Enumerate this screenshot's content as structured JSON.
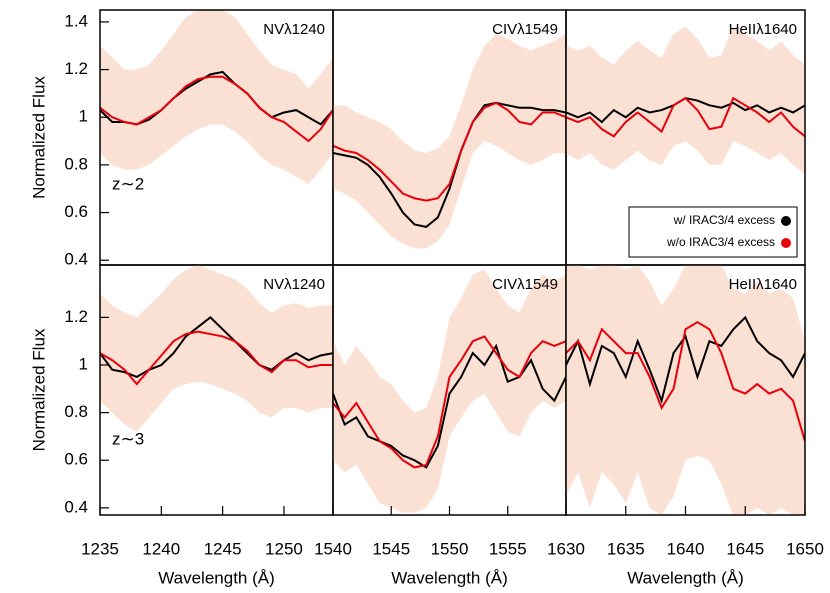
{
  "chart_data": [
    {
      "type": "line",
      "annotation": "NVλ1240",
      "redshift_label": "z∼2",
      "ylabel": "Normalized Flux",
      "x": [
        1235,
        1236,
        1237,
        1238,
        1239,
        1240,
        1241,
        1242,
        1243,
        1244,
        1245,
        1246,
        1247,
        1248,
        1249,
        1250,
        1251,
        1252,
        1253,
        1254
      ],
      "xlim": [
        1235,
        1254
      ],
      "ylim": [
        0.38,
        1.45
      ],
      "yticks": [
        0.4,
        0.6,
        0.8,
        1.0,
        1.2,
        1.4
      ],
      "series": [
        {
          "color": "#000000",
          "values": [
            1.03,
            0.98,
            0.98,
            0.97,
            0.99,
            1.03,
            1.08,
            1.12,
            1.15,
            1.18,
            1.19,
            1.14,
            1.1,
            1.04,
            1.0,
            1.02,
            1.03,
            1.0,
            0.97,
            1.03
          ]
        },
        {
          "color": "#e8000b",
          "values": [
            1.04,
            1.0,
            0.98,
            0.97,
            1.0,
            1.03,
            1.08,
            1.13,
            1.16,
            1.17,
            1.17,
            1.14,
            1.1,
            1.04,
            1.0,
            0.98,
            0.94,
            0.9,
            0.95,
            1.03
          ]
        }
      ],
      "band": {
        "color": "#fbe0d4",
        "lower": [
          0.85,
          0.8,
          0.78,
          0.78,
          0.8,
          0.84,
          0.88,
          0.92,
          0.95,
          0.97,
          0.97,
          0.94,
          0.9,
          0.84,
          0.8,
          0.78,
          0.75,
          0.72,
          0.78,
          0.85
        ],
        "upper": [
          1.3,
          1.25,
          1.2,
          1.2,
          1.22,
          1.28,
          1.35,
          1.42,
          1.45,
          1.45,
          1.45,
          1.42,
          1.35,
          1.28,
          1.22,
          1.2,
          1.18,
          1.12,
          1.18,
          1.25
        ]
      }
    },
    {
      "type": "line",
      "annotation": "CIVλ1549",
      "x": [
        1540,
        1541,
        1542,
        1543,
        1544,
        1545,
        1546,
        1547,
        1548,
        1549,
        1550,
        1551,
        1552,
        1553,
        1554,
        1555,
        1556,
        1557,
        1558,
        1559,
        1560
      ],
      "xlim": [
        1540,
        1560
      ],
      "ylim": [
        0.38,
        1.45
      ],
      "series": [
        {
          "color": "#000000",
          "values": [
            0.85,
            0.84,
            0.83,
            0.8,
            0.75,
            0.68,
            0.6,
            0.55,
            0.54,
            0.58,
            0.7,
            0.86,
            0.98,
            1.05,
            1.06,
            1.05,
            1.04,
            1.04,
            1.03,
            1.03,
            1.02
          ]
        },
        {
          "color": "#e8000b",
          "values": [
            0.88,
            0.86,
            0.85,
            0.82,
            0.78,
            0.73,
            0.68,
            0.66,
            0.65,
            0.66,
            0.72,
            0.86,
            0.98,
            1.04,
            1.06,
            1.03,
            0.98,
            0.97,
            1.02,
            1.02,
            1.0
          ]
        }
      ],
      "band": {
        "color": "#fbe0d4",
        "lower": [
          0.7,
          0.68,
          0.65,
          0.6,
          0.55,
          0.5,
          0.47,
          0.45,
          0.45,
          0.48,
          0.55,
          0.7,
          0.85,
          0.9,
          0.88,
          0.85,
          0.82,
          0.8,
          0.82,
          0.85,
          0.85
        ],
        "upper": [
          1.05,
          1.05,
          1.02,
          1.0,
          0.98,
          0.95,
          0.9,
          0.86,
          0.85,
          0.87,
          0.92,
          1.05,
          1.2,
          1.3,
          1.35,
          1.33,
          1.3,
          1.28,
          1.3,
          1.32,
          1.35
        ]
      }
    },
    {
      "type": "line",
      "annotation": "HeIIλ1640",
      "x": [
        1630,
        1631,
        1632,
        1633,
        1634,
        1635,
        1636,
        1637,
        1638,
        1639,
        1640,
        1641,
        1642,
        1643,
        1644,
        1645,
        1646,
        1647,
        1648,
        1649,
        1650
      ],
      "xlim": [
        1630,
        1650
      ],
      "ylim": [
        0.38,
        1.45
      ],
      "series": [
        {
          "name": "w/ IRAC3/4 excess",
          "color": "#000000",
          "values": [
            1.02,
            1.0,
            1.02,
            0.98,
            1.03,
            1.0,
            1.04,
            1.02,
            1.03,
            1.05,
            1.08,
            1.07,
            1.05,
            1.04,
            1.06,
            1.03,
            1.05,
            1.02,
            1.04,
            1.02,
            1.05
          ]
        },
        {
          "name": "w/o IRAC3/4 excess",
          "color": "#e8000b",
          "values": [
            1.0,
            0.98,
            1.0,
            0.95,
            0.92,
            0.98,
            1.02,
            0.98,
            0.94,
            1.05,
            1.08,
            1.03,
            0.95,
            0.96,
            1.08,
            1.05,
            1.02,
            0.98,
            1.02,
            0.96,
            0.92
          ]
        }
      ],
      "band": {
        "color": "#fbe0d4",
        "lower": [
          0.85,
          0.82,
          0.85,
          0.8,
          0.78,
          0.82,
          0.86,
          0.82,
          0.8,
          0.88,
          0.9,
          0.86,
          0.8,
          0.8,
          0.9,
          0.88,
          0.85,
          0.82,
          0.85,
          0.8,
          0.76
        ],
        "upper": [
          1.3,
          1.28,
          1.3,
          1.25,
          1.22,
          1.28,
          1.32,
          1.28,
          1.25,
          1.35,
          1.38,
          1.33,
          1.25,
          1.26,
          1.38,
          1.35,
          1.32,
          1.28,
          1.32,
          1.26,
          1.22
        ]
      }
    },
    {
      "type": "line",
      "annotation": "NVλ1240",
      "redshift_label": "z∼3",
      "ylabel": "Normalized Flux",
      "xlabel": "Wavelength (Å)",
      "x": [
        1235,
        1236,
        1237,
        1238,
        1239,
        1240,
        1241,
        1242,
        1243,
        1244,
        1245,
        1246,
        1247,
        1248,
        1249,
        1250,
        1251,
        1252,
        1253,
        1254
      ],
      "xlim": [
        1235,
        1254
      ],
      "xticks": [
        1235,
        1240,
        1245,
        1250
      ],
      "ylim": [
        0.37,
        1.42
      ],
      "yticks": [
        0.4,
        0.6,
        0.8,
        1.0,
        1.2
      ],
      "series": [
        {
          "color": "#000000",
          "values": [
            1.05,
            0.98,
            0.97,
            0.95,
            0.98,
            1.0,
            1.05,
            1.12,
            1.16,
            1.2,
            1.15,
            1.1,
            1.05,
            1.0,
            0.98,
            1.02,
            1.05,
            1.02,
            1.04,
            1.05
          ]
        },
        {
          "color": "#e8000b",
          "values": [
            1.05,
            1.02,
            0.98,
            0.92,
            0.98,
            1.04,
            1.1,
            1.13,
            1.14,
            1.13,
            1.12,
            1.1,
            1.06,
            1.0,
            0.97,
            1.02,
            1.02,
            0.99,
            1.0,
            1.0
          ]
        }
      ],
      "band": {
        "color": "#fbe0d4",
        "lower": [
          0.85,
          0.8,
          0.75,
          0.72,
          0.78,
          0.84,
          0.9,
          0.92,
          0.93,
          0.92,
          0.9,
          0.88,
          0.85,
          0.8,
          0.78,
          0.82,
          0.82,
          0.8,
          0.82,
          0.82
        ],
        "upper": [
          1.3,
          1.25,
          1.22,
          1.2,
          1.25,
          1.3,
          1.36,
          1.4,
          1.42,
          1.4,
          1.38,
          1.36,
          1.32,
          1.26,
          1.22,
          1.25,
          1.26,
          1.24,
          1.25,
          1.25
        ]
      }
    },
    {
      "type": "line",
      "annotation": "CIVλ1549",
      "xlabel": "Wavelength (Å)",
      "x": [
        1540,
        1541,
        1542,
        1543,
        1544,
        1545,
        1546,
        1547,
        1548,
        1549,
        1550,
        1551,
        1552,
        1553,
        1554,
        1555,
        1556,
        1557,
        1558,
        1559,
        1560
      ],
      "xlim": [
        1540,
        1560
      ],
      "xticks": [
        1540,
        1545,
        1550,
        1555
      ],
      "ylim": [
        0.37,
        1.42
      ],
      "series": [
        {
          "color": "#000000",
          "values": [
            0.88,
            0.75,
            0.78,
            0.7,
            0.68,
            0.66,
            0.62,
            0.6,
            0.57,
            0.66,
            0.88,
            0.95,
            1.05,
            1.0,
            1.08,
            0.93,
            0.95,
            1.02,
            0.9,
            0.85,
            0.95
          ]
        },
        {
          "color": "#e8000b",
          "values": [
            0.84,
            0.78,
            0.84,
            0.76,
            0.68,
            0.65,
            0.6,
            0.57,
            0.58,
            0.7,
            0.95,
            1.02,
            1.1,
            1.12,
            1.05,
            0.98,
            0.95,
            1.05,
            1.1,
            1.08,
            1.1
          ]
        }
      ],
      "band": {
        "color": "#fbe0d4",
        "lower": [
          0.6,
          0.55,
          0.58,
          0.5,
          0.42,
          0.4,
          0.38,
          0.38,
          0.4,
          0.48,
          0.7,
          0.78,
          0.85,
          0.88,
          0.8,
          0.72,
          0.7,
          0.8,
          0.85,
          0.82,
          0.85
        ],
        "upper": [
          1.1,
          1.0,
          1.08,
          1.02,
          0.95,
          0.92,
          0.85,
          0.8,
          0.82,
          0.95,
          1.2,
          1.28,
          1.38,
          1.4,
          1.32,
          1.25,
          1.22,
          1.32,
          1.38,
          1.35,
          1.38
        ]
      }
    },
    {
      "type": "line",
      "annotation": "HeIIλ1640",
      "xlabel": "Wavelength (Å)",
      "x": [
        1630,
        1631,
        1632,
        1633,
        1634,
        1635,
        1636,
        1637,
        1638,
        1639,
        1640,
        1641,
        1642,
        1643,
        1644,
        1645,
        1646,
        1647,
        1648,
        1649,
        1650
      ],
      "xlim": [
        1630,
        1650
      ],
      "xticks": [
        1630,
        1635,
        1640,
        1645,
        1650
      ],
      "ylim": [
        0.37,
        1.42
      ],
      "series": [
        {
          "color": "#000000",
          "values": [
            1.0,
            1.1,
            0.92,
            1.08,
            1.05,
            0.95,
            1.1,
            0.98,
            0.85,
            1.05,
            1.12,
            0.95,
            1.1,
            1.08,
            1.15,
            1.2,
            1.1,
            1.05,
            1.02,
            0.95,
            1.05
          ]
        },
        {
          "color": "#e8000b",
          "values": [
            1.05,
            1.1,
            1.02,
            1.15,
            1.1,
            1.05,
            1.05,
            0.95,
            0.82,
            0.9,
            1.15,
            1.18,
            1.15,
            1.05,
            0.9,
            0.88,
            0.92,
            0.88,
            0.9,
            0.85,
            0.68
          ]
        }
      ],
      "band": {
        "color": "#fbe0d4",
        "lower": [
          0.45,
          0.55,
          0.4,
          0.55,
          0.5,
          0.42,
          0.55,
          0.4,
          0.37,
          0.45,
          0.6,
          0.62,
          0.6,
          0.5,
          0.37,
          0.37,
          0.4,
          0.37,
          0.4,
          0.37,
          0.37
        ],
        "upper": [
          1.42,
          1.42,
          1.4,
          1.42,
          1.42,
          1.4,
          1.42,
          1.35,
          1.25,
          1.32,
          1.42,
          1.42,
          1.42,
          1.42,
          1.32,
          1.3,
          1.35,
          1.3,
          1.32,
          1.28,
          1.1
        ]
      }
    }
  ]
}
